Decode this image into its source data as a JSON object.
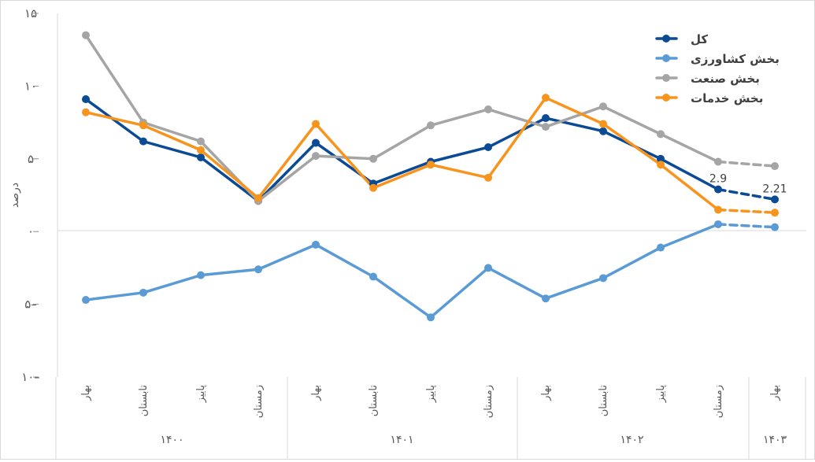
{
  "chart_data": {
    "type": "line",
    "ylabel": "درصد",
    "ylim": [
      -10,
      15
    ],
    "yticks": [
      {
        "value": 15,
        "label": "۱۵"
      },
      {
        "value": 10,
        "label": "۱۰"
      },
      {
        "value": 5,
        "label": "۵"
      },
      {
        "value": 0,
        "label": "۰"
      },
      {
        "value": -5,
        "label": "۵–"
      },
      {
        "value": -10,
        "label": "۱۰–"
      }
    ],
    "categories": [
      "بهار",
      "تابستان",
      "پاییز",
      "زمستان",
      "بهار",
      "تابستان",
      "پاییز",
      "زمستان",
      "بهار",
      "تابستان",
      "پاییز",
      "زمستان",
      "بهار"
    ],
    "year_groups": [
      {
        "label": "۱۴۰۰",
        "start": 0,
        "end": 3
      },
      {
        "label": "۱۴۰۱",
        "start": 4,
        "end": 7
      },
      {
        "label": "۱۴۰۲",
        "start": 8,
        "end": 11
      },
      {
        "label": "۱۴۰۳",
        "start": 12,
        "end": 12
      }
    ],
    "forecast_from_index": 11,
    "series": [
      {
        "name": "کل",
        "color": "#0b4a94",
        "values": [
          9.1,
          6.2,
          5.1,
          2.1,
          6.1,
          3.3,
          4.8,
          5.8,
          7.8,
          6.9,
          5.0,
          2.9,
          2.21
        ]
      },
      {
        "name": "بخش کشاورزی",
        "color": "#5b9bd5",
        "values": [
          -4.7,
          -4.2,
          -3.0,
          -2.6,
          -0.9,
          -3.1,
          -5.9,
          -2.5,
          -4.6,
          -3.2,
          -1.1,
          0.5,
          0.3
        ]
      },
      {
        "name": "بخش صنعت",
        "color": "#a5a5a5",
        "values": [
          13.5,
          7.5,
          6.2,
          2.1,
          5.2,
          5.0,
          7.3,
          8.4,
          7.2,
          8.6,
          6.7,
          4.8,
          4.5
        ]
      },
      {
        "name": "بخش خدمات",
        "color": "#f7941d",
        "values": [
          8.2,
          7.3,
          5.6,
          2.3,
          7.4,
          3.0,
          4.6,
          3.7,
          9.2,
          7.4,
          4.6,
          1.5,
          1.3
        ]
      }
    ],
    "data_labels": [
      {
        "series": 0,
        "index": 11,
        "text": "2.9"
      },
      {
        "series": 0,
        "index": 12,
        "text": "2.21"
      }
    ],
    "legend_position": "top-right",
    "grid": false
  }
}
